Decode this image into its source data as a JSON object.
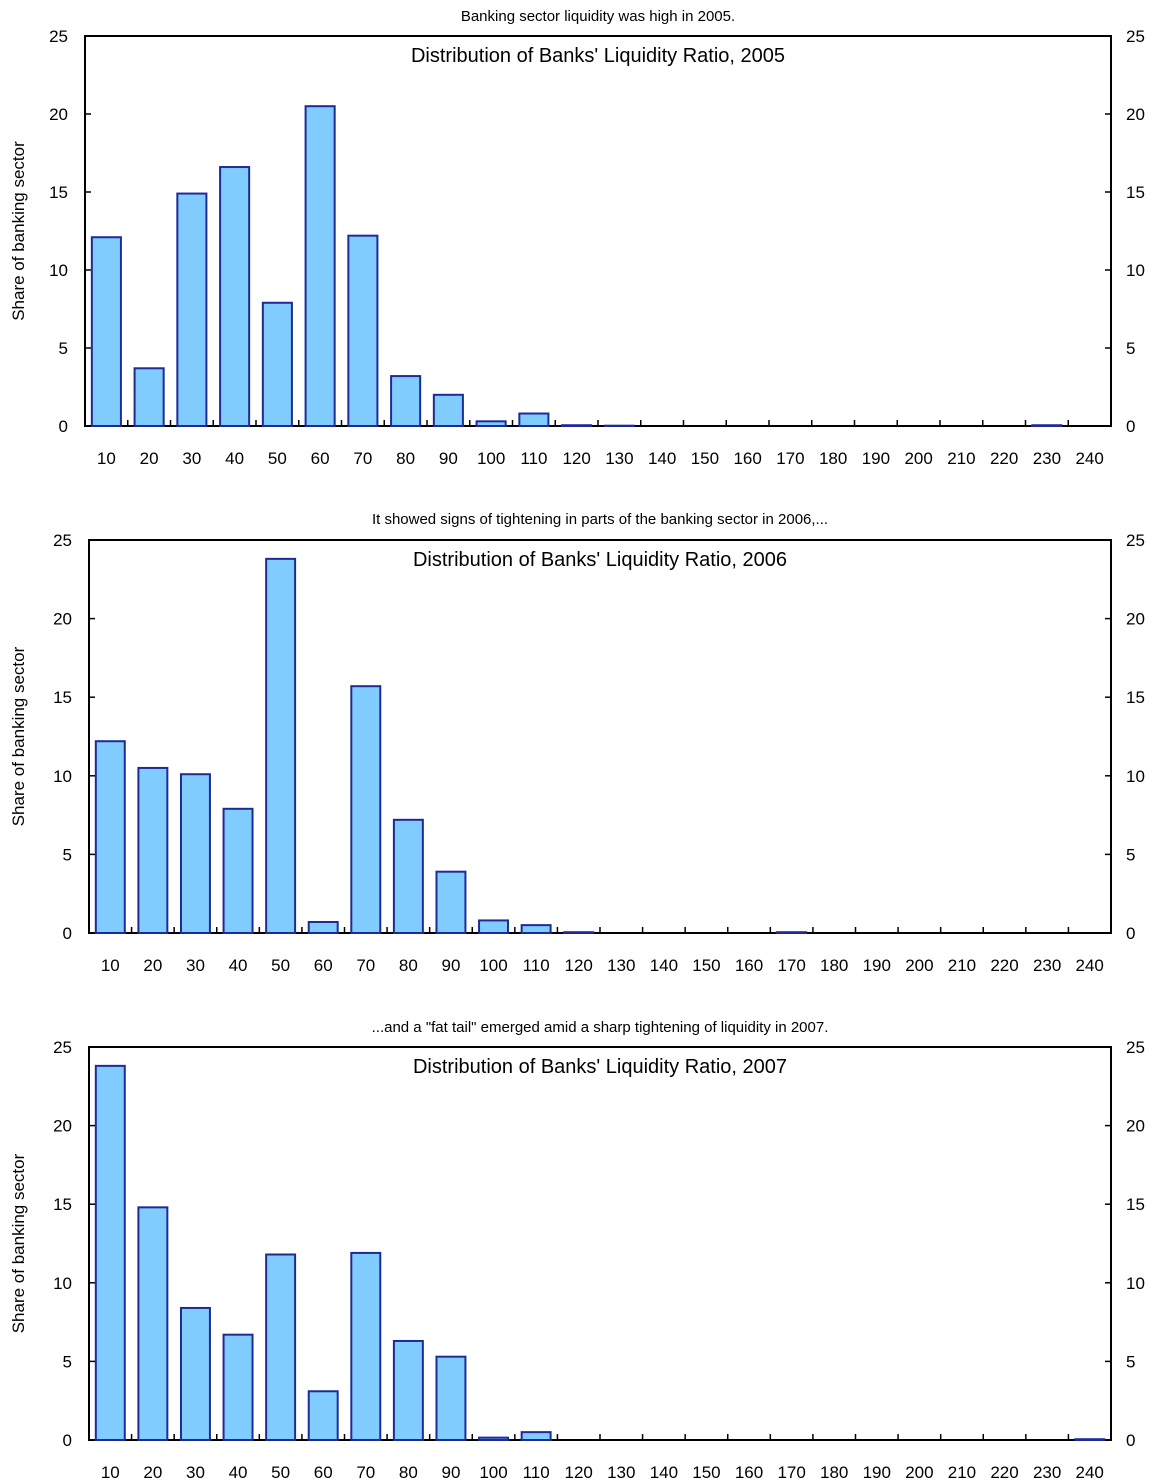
{
  "chart_data": [
    {
      "type": "bar",
      "subtitle": "Banking sector liquidity was high in 2005.",
      "title": "Distribution of Banks' Liquidity Ratio, 2005",
      "ylabel": "Share of banking sector",
      "xlabel": "",
      "ylim": [
        0,
        25
      ],
      "yticks": [
        "0",
        "5",
        "10",
        "15",
        "20",
        "25"
      ],
      "categories": [
        "10",
        "20",
        "30",
        "40",
        "50",
        "60",
        "70",
        "80",
        "90",
        "100",
        "110",
        "120",
        "130",
        "140",
        "150",
        "160",
        "170",
        "180",
        "190",
        "200",
        "210",
        "220",
        "230",
        "240"
      ],
      "values": [
        12.1,
        3.7,
        14.9,
        16.6,
        7.9,
        20.5,
        12.2,
        3.2,
        2.0,
        0.3,
        0.8,
        0.05,
        0.02,
        0,
        0,
        0,
        0,
        0,
        0,
        0,
        0,
        0,
        0.05,
        0
      ],
      "grid": false,
      "colors": {
        "bar_fill": "#80CCFF",
        "bar_stroke": "#1F2A99"
      }
    },
    {
      "type": "bar",
      "subtitle": "It showed signs of tightening in parts of the banking sector in 2006,...",
      "title": "Distribution of Banks' Liquidity Ratio, 2006",
      "ylabel": "Share of banking sector",
      "xlabel": "",
      "ylim": [
        0,
        25
      ],
      "yticks": [
        "0",
        "5",
        "10",
        "15",
        "20",
        "25"
      ],
      "categories": [
        "10",
        "20",
        "30",
        "40",
        "50",
        "60",
        "70",
        "80",
        "90",
        "100",
        "110",
        "120",
        "130",
        "140",
        "150",
        "160",
        "170",
        "180",
        "190",
        "200",
        "210",
        "220",
        "230",
        "240"
      ],
      "values": [
        12.2,
        10.5,
        10.1,
        7.9,
        23.8,
        0.7,
        15.7,
        7.2,
        3.9,
        0.8,
        0.5,
        0.05,
        0,
        0,
        0,
        0,
        0.05,
        0,
        0,
        0,
        0,
        0,
        0,
        0
      ],
      "grid": false,
      "colors": {
        "bar_fill": "#80CCFF",
        "bar_stroke": "#1F2A99"
      }
    },
    {
      "type": "bar",
      "subtitle": "...and a \"fat tail\" emerged amid a sharp tightening of liquidity in 2007.",
      "title": "Distribution of Banks' Liquidity Ratio, 2007",
      "ylabel": "Share of banking sector",
      "xlabel": "",
      "ylim": [
        0,
        25
      ],
      "yticks": [
        "0",
        "5",
        "10",
        "15",
        "20",
        "25"
      ],
      "categories": [
        "10",
        "20",
        "30",
        "40",
        "50",
        "60",
        "70",
        "80",
        "90",
        "100",
        "110",
        "120",
        "130",
        "140",
        "150",
        "160",
        "170",
        "180",
        "190",
        "200",
        "210",
        "220",
        "230",
        "240"
      ],
      "values": [
        23.8,
        14.8,
        8.4,
        6.7,
        11.8,
        3.1,
        11.9,
        6.3,
        5.3,
        0.15,
        0.5,
        0,
        0,
        0,
        0,
        0,
        0,
        0,
        0,
        0,
        0,
        0,
        0,
        0.05
      ],
      "grid": false,
      "colors": {
        "bar_fill": "#80CCFF",
        "bar_stroke": "#1F2A99"
      }
    }
  ]
}
